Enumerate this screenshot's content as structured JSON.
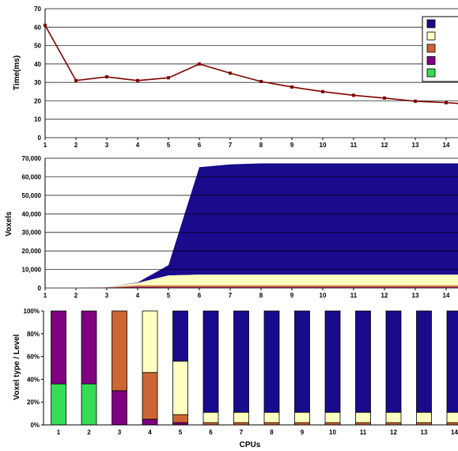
{
  "colors": {
    "level1": "#1a0a8c",
    "level2": "#ffffc0",
    "level3": "#cc6633",
    "level4": "#800080",
    "level5": "#33dd55",
    "line": "#800000",
    "grid": "#000000"
  },
  "chart_data": [
    {
      "type": "line",
      "ylabel": "Time(ms)",
      "ylim": [
        0,
        70
      ],
      "yticks": [
        "0",
        "10",
        "20",
        "30",
        "40",
        "50",
        "60",
        "70"
      ],
      "x": [
        1,
        2,
        3,
        4,
        5,
        6,
        7,
        8,
        9,
        10,
        11,
        12,
        13,
        14,
        14.5
      ],
      "xticks": [
        "1",
        "2",
        "3",
        "4",
        "5",
        "6",
        "7",
        "8",
        "9",
        "10",
        "11",
        "12",
        "13",
        "14"
      ],
      "values": [
        61,
        31,
        33,
        31,
        32.5,
        40,
        35,
        30.5,
        27.5,
        25,
        23,
        21.5,
        19.8,
        19,
        18.5
      ],
      "legend": {
        "placement": "top-right",
        "swatches": [
          "level1",
          "level2",
          "level3",
          "level4",
          "level5"
        ]
      },
      "grid": true
    },
    {
      "type": "area",
      "ylabel": "Voxels",
      "ylim": [
        0,
        70000
      ],
      "yticks": [
        "0",
        "10,000",
        "20,000",
        "30,000",
        "40,000",
        "50,000",
        "60,000",
        "70,000"
      ],
      "x": [
        1,
        2,
        3,
        4,
        5,
        6,
        7,
        8,
        9,
        10,
        11,
        12,
        13,
        14,
        14.5
      ],
      "xticks": [
        "1",
        "2",
        "3",
        "4",
        "5",
        "6",
        "7",
        "8",
        "9",
        "10",
        "11",
        "12",
        "13",
        "14"
      ],
      "series": [
        {
          "color": "level4",
          "values": [
            0,
            0,
            200,
            500,
            400,
            400,
            400,
            400,
            400,
            400,
            400,
            400,
            400,
            400,
            400
          ]
        },
        {
          "color": "level3",
          "values": [
            0,
            0,
            100,
            900,
            1000,
            1000,
            1000,
            1000,
            1000,
            1000,
            1000,
            1000,
            1000,
            1000,
            1000
          ]
        },
        {
          "color": "level2",
          "values": [
            0,
            0,
            100,
            1300,
            5400,
            5800,
            5800,
            5800,
            5800,
            5800,
            5800,
            5800,
            5800,
            5800,
            5800
          ]
        },
        {
          "color": "level1",
          "values": [
            0,
            0,
            0,
            300,
            5500,
            58000,
            59500,
            60000,
            60000,
            60000,
            60000,
            60000,
            60000,
            60000,
            60000
          ]
        }
      ],
      "grid": true
    },
    {
      "type": "bar",
      "stacked": "percent",
      "xlabel": "CPUs",
      "ylabel": "Voxel type / Level",
      "ylim": [
        0,
        100
      ],
      "yticks": [
        "0%",
        "20%",
        "40%",
        "60%",
        "80%",
        "100%"
      ],
      "categories": [
        "1",
        "2",
        "3",
        "4",
        "5",
        "6",
        "7",
        "8",
        "9",
        "10",
        "11",
        "12",
        "13",
        "14"
      ],
      "series": [
        {
          "color": "level5",
          "values": [
            36,
            36,
            0,
            0,
            0,
            0,
            0,
            0,
            0,
            0,
            0,
            0,
            0,
            0
          ]
        },
        {
          "color": "level4",
          "values": [
            64,
            64,
            30,
            5,
            2,
            0,
            0,
            0,
            0,
            0,
            0,
            0,
            0,
            0
          ]
        },
        {
          "color": "level3",
          "values": [
            0,
            0,
            70,
            41,
            7,
            2,
            2,
            2,
            2,
            2,
            2,
            2,
            2,
            2
          ]
        },
        {
          "color": "level2",
          "values": [
            0,
            0,
            0,
            54,
            47,
            9,
            9,
            9,
            9,
            9,
            9,
            9,
            9,
            9
          ]
        },
        {
          "color": "level1",
          "values": [
            0,
            0,
            0,
            0,
            44,
            89,
            89,
            89,
            89,
            89,
            89,
            89,
            89,
            89
          ]
        }
      ],
      "grid": false
    }
  ]
}
